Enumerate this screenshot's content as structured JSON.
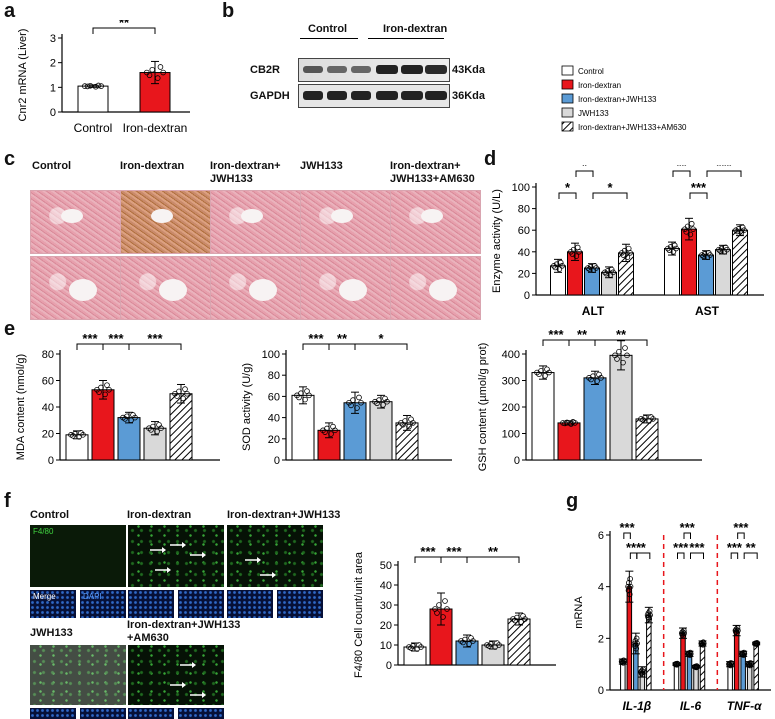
{
  "panels": {
    "a": "a",
    "b": "b",
    "c": "c",
    "d": "d",
    "e": "e",
    "f": "f",
    "g": "g"
  },
  "legend": {
    "items": [
      {
        "label": "Control",
        "color": "#ffffff",
        "pattern": "none"
      },
      {
        "label": "Iron-dextran",
        "color": "#e8161c",
        "pattern": "none"
      },
      {
        "label": "Iron-dextran+JWH133",
        "color": "#5b9bd5",
        "pattern": "none"
      },
      {
        "label": "JWH133",
        "color": "#d9d9d9",
        "pattern": "none"
      },
      {
        "label": "Iron-dextran+JWH133+AM630",
        "color": "#ffffff",
        "pattern": "hatch"
      }
    ]
  },
  "blot": {
    "groups": [
      "Control",
      "Iron-dextran"
    ],
    "rows": [
      {
        "name": "CB2R",
        "kda": "43Kda"
      },
      {
        "name": "GAPDH",
        "kda": "36Kda"
      }
    ]
  },
  "histology": {
    "headers": [
      "Control",
      "Iron-dextran",
      "Iron-dextran+\nJWH133",
      "JWH133",
      "Iron-dextran+\nJWH133+AM630"
    ]
  },
  "ihc": {
    "titles": {
      "control": "Control",
      "iron": "Iron-dextran",
      "ironjwh": "Iron-dextran+JWH133",
      "jwh": "JWH133",
      "am630": "Iron-dextran+JWH133\n+AM630"
    },
    "stain": "F4/80",
    "merge": "Merge",
    "dapi": "DAPI"
  },
  "chart_data": [
    {
      "id": "a",
      "type": "bar",
      "categories": [
        "Control",
        "Iron-dextran"
      ],
      "values": [
        1.05,
        1.6
      ],
      "errors": [
        0.05,
        0.45
      ],
      "colors": [
        "#ffffff",
        "#e8161c"
      ],
      "ylabel": "Cnr2 mRNA (Liver)",
      "ylim": [
        0,
        3
      ],
      "yticks": [
        0,
        1,
        2,
        3
      ],
      "significance": [
        {
          "from": 0,
          "to": 1,
          "label": "**"
        }
      ]
    },
    {
      "id": "d",
      "type": "bar",
      "groups": [
        "ALT",
        "AST"
      ],
      "series_names": [
        "Control",
        "Iron-dextran",
        "Iron-dextran+JWH133",
        "JWH133",
        "Iron-dextran+JWH133+AM630"
      ],
      "values": [
        [
          27,
          40,
          25,
          21,
          39
        ],
        [
          43,
          61,
          37,
          42,
          60
        ]
      ],
      "errors": [
        [
          6,
          8,
          4,
          5,
          8
        ],
        [
          6,
          10,
          4,
          4,
          5
        ]
      ],
      "ylabel": "Enzyme activity (U/L)",
      "ylim": [
        0,
        100
      ],
      "yticks": [
        0,
        20,
        40,
        60,
        80,
        100
      ],
      "significance": [
        {
          "group": 0,
          "from": 0,
          "to": 1,
          "label": "*",
          "level": 1
        },
        {
          "group": 0,
          "from": 1,
          "to": 2,
          "label": "*",
          "level": 2
        },
        {
          "group": 0,
          "from": 2,
          "to": 4,
          "label": "*",
          "level": 1
        },
        {
          "group": 1,
          "from": 0,
          "to": 1,
          "label": "**",
          "level": 2
        },
        {
          "group": 1,
          "from": 1,
          "to": 2,
          "label": "***",
          "level": 1
        },
        {
          "group": 1,
          "from": 2,
          "to": 4,
          "label": "***",
          "level": 2
        }
      ]
    },
    {
      "id": "e1",
      "type": "bar",
      "categories": [
        "Control",
        "Iron-dextran",
        "Iron-dextran+JWH133",
        "JWH133",
        "Iron-dextran+JWH133+AM630"
      ],
      "values": [
        19,
        53,
        32,
        24,
        50
      ],
      "errors": [
        3,
        7,
        4,
        5,
        7
      ],
      "ylabel": "MDA content (nmol/g)",
      "ylim": [
        0,
        80
      ],
      "yticks": [
        0,
        20,
        40,
        60,
        80
      ],
      "significance": [
        {
          "from": 0,
          "to": 1,
          "label": "***",
          "level": 1
        },
        {
          "from": 1,
          "to": 2,
          "label": "***",
          "level": 1
        },
        {
          "from": 2,
          "to": 4,
          "label": "***",
          "level": 1
        }
      ]
    },
    {
      "id": "e2",
      "type": "bar",
      "categories": [
        "Control",
        "Iron-dextran",
        "Iron-dextran+JWH133",
        "JWH133",
        "Iron-dextran+JWH133+AM630"
      ],
      "values": [
        61,
        28,
        54,
        55,
        35
      ],
      "errors": [
        8,
        7,
        10,
        6,
        7
      ],
      "ylabel": "SOD activity (U/g)",
      "ylim": [
        0,
        100
      ],
      "yticks": [
        0,
        20,
        40,
        60,
        80,
        100
      ],
      "significance": [
        {
          "from": 0,
          "to": 1,
          "label": "***",
          "level": 1
        },
        {
          "from": 1,
          "to": 2,
          "label": "**",
          "level": 1
        },
        {
          "from": 2,
          "to": 4,
          "label": "*",
          "level": 1
        }
      ]
    },
    {
      "id": "e3",
      "type": "bar",
      "categories": [
        "Control",
        "Iron-dextran",
        "Iron-dextran+JWH133",
        "JWH133",
        "Iron-dextran+JWH133+AM630"
      ],
      "values": [
        330,
        140,
        310,
        395,
        155
      ],
      "errors": [
        25,
        8,
        25,
        55,
        15
      ],
      "ylabel": "GSH content (µmol/g prot)",
      "ylim": [
        0,
        400
      ],
      "yticks": [
        0,
        100,
        200,
        300,
        400
      ],
      "significance": [
        {
          "from": 0,
          "to": 1,
          "label": "***",
          "level": 1
        },
        {
          "from": 1,
          "to": 2,
          "label": "**",
          "level": 1
        },
        {
          "from": 2,
          "to": 4,
          "label": "**",
          "level": 1
        }
      ]
    },
    {
      "id": "f",
      "type": "bar",
      "categories": [
        "Control",
        "Iron-dextran",
        "Iron-dextran+JWH133",
        "JWH133",
        "Iron-dextran+JWH133+AM630"
      ],
      "values": [
        9,
        28,
        12,
        10,
        23
      ],
      "errors": [
        2,
        8,
        3,
        2,
        3
      ],
      "ylabel": "F4/80 Cell count/unit area",
      "ylim": [
        0,
        50
      ],
      "yticks": [
        0,
        10,
        20,
        30,
        40,
        50
      ],
      "significance": [
        {
          "from": 0,
          "to": 1,
          "label": "***",
          "level": 1
        },
        {
          "from": 1,
          "to": 2,
          "label": "***",
          "level": 1
        },
        {
          "from": 2,
          "to": 4,
          "label": "**",
          "level": 1
        }
      ]
    },
    {
      "id": "g",
      "type": "bar",
      "groups": [
        "IL-1β",
        "IL-6",
        "TNF-α"
      ],
      "series_names": [
        "Control",
        "Iron-dextran",
        "Iron-dextran+JWH133",
        "JWH133",
        "Iron-dextran+JWH133+AM630"
      ],
      "values": [
        [
          1.1,
          4.0,
          1.8,
          0.7,
          2.9
        ],
        [
          1.0,
          2.2,
          1.4,
          0.9,
          1.8
        ],
        [
          1.0,
          2.3,
          1.4,
          1.0,
          1.8
        ]
      ],
      "errors": [
        [
          0.1,
          0.6,
          0.4,
          0.2,
          0.3
        ],
        [
          0.05,
          0.2,
          0.1,
          0.05,
          0.1
        ],
        [
          0.1,
          0.2,
          0.1,
          0.1,
          0.05
        ]
      ],
      "ylabel": "mRNA",
      "ylim": [
        0,
        6
      ],
      "yticks": [
        0,
        2,
        4,
        6
      ],
      "significance": [
        {
          "group": 0,
          "from": 0,
          "to": 1,
          "label": "***",
          "level": 2
        },
        {
          "group": 0,
          "from": 1,
          "to": 2,
          "label": "***",
          "level": 1
        },
        {
          "group": 0,
          "from": 2,
          "to": 4,
          "label": "*",
          "level": 1
        },
        {
          "group": 1,
          "from": 0,
          "to": 1,
          "label": "***",
          "level": 1
        },
        {
          "group": 1,
          "from": 1,
          "to": 2,
          "label": "***",
          "level": 2
        },
        {
          "group": 1,
          "from": 2,
          "to": 4,
          "label": "***",
          "level": 1
        },
        {
          "group": 2,
          "from": 0,
          "to": 1,
          "label": "***",
          "level": 1
        },
        {
          "group": 2,
          "from": 1,
          "to": 2,
          "label": "***",
          "level": 2
        },
        {
          "group": 2,
          "from": 2,
          "to": 4,
          "label": "**",
          "level": 1
        }
      ]
    }
  ]
}
